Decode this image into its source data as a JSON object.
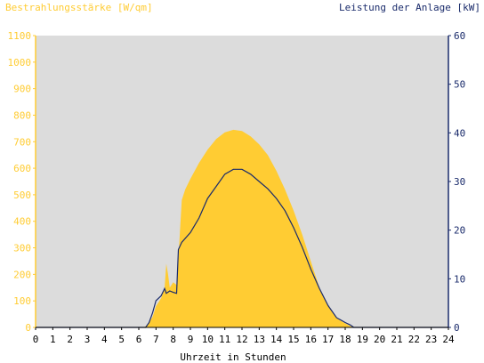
{
  "chart_data": {
    "type": "area",
    "title": "",
    "left_axis": {
      "label": "Bestrahlungsstärke [W/qm]",
      "min": 0,
      "max": 1100,
      "ticks": [
        0,
        100,
        200,
        300,
        400,
        500,
        600,
        700,
        800,
        900,
        1000,
        1100
      ],
      "color": "#ffcc33"
    },
    "right_axis": {
      "label": "Leistung der Anlage [kW]",
      "min": 0,
      "max": 60,
      "ticks": [
        0,
        10,
        20,
        30,
        40,
        50,
        60
      ],
      "color": "#1a2b6b"
    },
    "x_axis": {
      "label": "Uhrzeit in Stunden",
      "min": 0,
      "max": 24,
      "ticks": [
        0,
        1,
        2,
        3,
        4,
        5,
        6,
        7,
        8,
        9,
        10,
        11,
        12,
        13,
        14,
        15,
        16,
        17,
        18,
        19,
        20,
        21,
        22,
        23,
        24
      ]
    },
    "plot_background": "#dcdcdc",
    "series": [
      {
        "axis": "left",
        "kind": "area",
        "color": "#ffcc33",
        "points": [
          [
            0,
            0
          ],
          [
            6.3,
            0
          ],
          [
            6.5,
            10
          ],
          [
            6.8,
            40
          ],
          [
            7.0,
            80
          ],
          [
            7.3,
            110
          ],
          [
            7.5,
            150
          ],
          [
            7.6,
            240
          ],
          [
            7.7,
            200
          ],
          [
            7.8,
            150
          ],
          [
            8.0,
            170
          ],
          [
            8.2,
            160
          ],
          [
            8.3,
            260
          ],
          [
            8.5,
            480
          ],
          [
            8.7,
            520
          ],
          [
            9,
            560
          ],
          [
            9.5,
            620
          ],
          [
            10,
            670
          ],
          [
            10.5,
            710
          ],
          [
            11,
            735
          ],
          [
            11.5,
            745
          ],
          [
            12,
            740
          ],
          [
            12.5,
            720
          ],
          [
            13,
            690
          ],
          [
            13.5,
            650
          ],
          [
            14,
            590
          ],
          [
            14.5,
            520
          ],
          [
            15,
            440
          ],
          [
            15.5,
            350
          ],
          [
            16,
            250
          ],
          [
            16.5,
            150
          ],
          [
            17,
            80
          ],
          [
            17.5,
            35
          ],
          [
            18,
            15
          ],
          [
            18.3,
            5
          ],
          [
            18.5,
            0
          ],
          [
            24,
            0
          ]
        ]
      },
      {
        "axis": "right",
        "kind": "line",
        "color": "#1a2b6b",
        "points": [
          [
            0,
            0
          ],
          [
            6.4,
            0
          ],
          [
            6.6,
            1
          ],
          [
            6.8,
            3
          ],
          [
            7.0,
            5.5
          ],
          [
            7.3,
            6.5
          ],
          [
            7.5,
            8
          ],
          [
            7.6,
            7
          ],
          [
            7.8,
            7.5
          ],
          [
            8.0,
            7.2
          ],
          [
            8.2,
            7
          ],
          [
            8.3,
            16
          ],
          [
            8.5,
            17.5
          ],
          [
            9,
            19.5
          ],
          [
            9.5,
            22.5
          ],
          [
            10,
            26.5
          ],
          [
            10.5,
            29
          ],
          [
            11,
            31.5
          ],
          [
            11.5,
            32.5
          ],
          [
            12,
            32.5
          ],
          [
            12.5,
            31.5
          ],
          [
            13,
            30
          ],
          [
            13.5,
            28.5
          ],
          [
            14,
            26.5
          ],
          [
            14.5,
            24
          ],
          [
            15,
            20.5
          ],
          [
            15.5,
            16.5
          ],
          [
            16,
            12
          ],
          [
            16.5,
            8
          ],
          [
            17,
            4.5
          ],
          [
            17.5,
            2
          ],
          [
            18,
            1
          ],
          [
            18.3,
            0.5
          ],
          [
            18.5,
            0
          ],
          [
            24,
            0
          ]
        ]
      }
    ]
  }
}
